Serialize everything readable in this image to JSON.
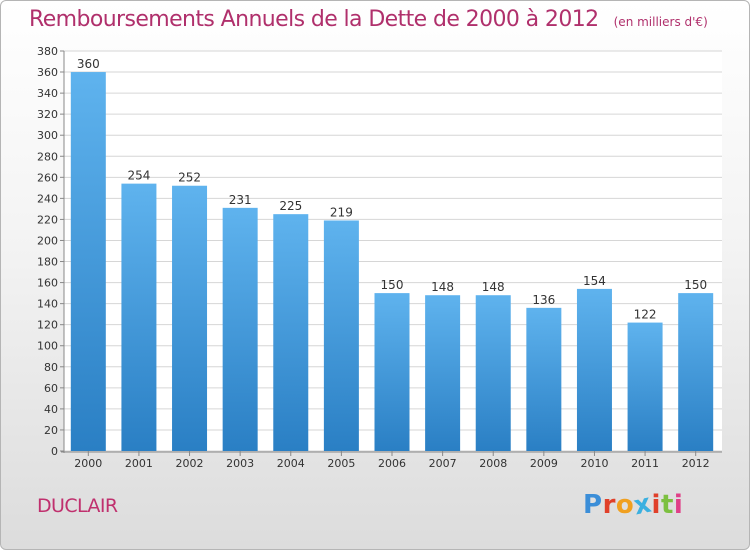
{
  "chart_data": {
    "type": "bar",
    "title": "Remboursements Annuels de la Dette de 2000 à 2012",
    "unit": "(en milliers d'€)",
    "categories": [
      "2000",
      "2001",
      "2002",
      "2003",
      "2004",
      "2005",
      "2006",
      "2007",
      "2008",
      "2009",
      "2010",
      "2011",
      "2012"
    ],
    "values": [
      360,
      254,
      252,
      231,
      225,
      219,
      150,
      148,
      148,
      136,
      154,
      122,
      150
    ],
    "ylim": [
      0,
      380
    ],
    "yticks": [
      0,
      20,
      40,
      60,
      80,
      100,
      120,
      140,
      160,
      180,
      200,
      220,
      240,
      260,
      280,
      300,
      320,
      340,
      360,
      380
    ],
    "grid": true,
    "bar_color": "#4a9fe0"
  },
  "footer": {
    "city": "DUCLAIR",
    "logo_text": "Proxiti"
  },
  "colors": {
    "title": "#b0306c",
    "city": "#c0306e",
    "bar_top": "#5fb3ee",
    "bar_bottom": "#2a7fc4",
    "logo_letters": [
      "#3b8ed8",
      "#e0402a",
      "#f0a020",
      "#3bb0e0",
      "#e0402a",
      "#7cc040",
      "#e04088"
    ]
  }
}
